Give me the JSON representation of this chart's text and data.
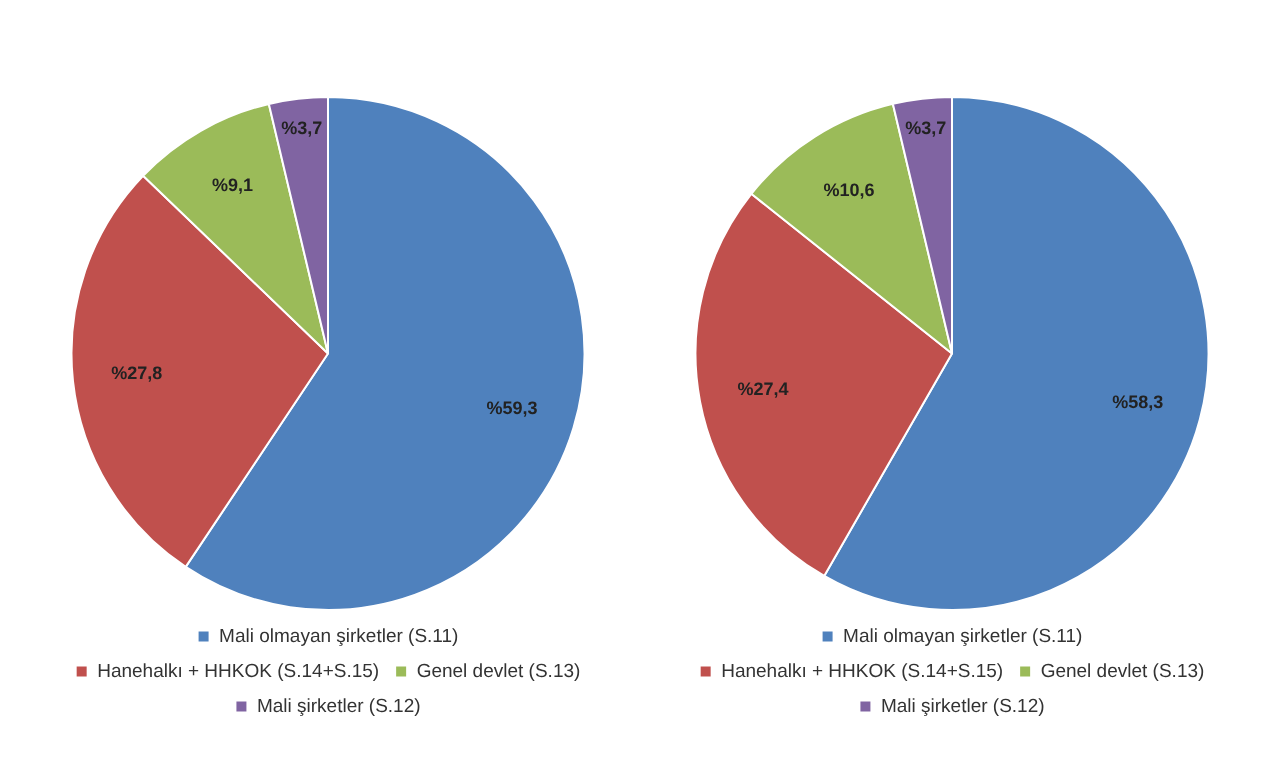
{
  "chart_data": [
    {
      "type": "pie",
      "categories": [
        "Mali olmayan şirketler (S.11)",
        "Hanehalkı + HHKOK (S.14+S.15)",
        "Genel devlet (S.13)",
        "Mali şirketler (S.12)"
      ],
      "values": [
        59.3,
        27.8,
        9.1,
        3.7
      ],
      "colors": [
        "#4f81bd",
        "#c0504d",
        "#9bbb59",
        "#8064a2"
      ],
      "value_labels": [
        "%59,3",
        "%27,8",
        "%9,1",
        "%3,7"
      ],
      "legend": "bottom"
    },
    {
      "type": "pie",
      "categories": [
        "Mali olmayan şirketler (S.11)",
        "Hanehalkı + HHKOK (S.14+S.15)",
        "Genel devlet (S.13)",
        "Mali şirketler (S.12)"
      ],
      "values": [
        58.3,
        27.4,
        10.6,
        3.7
      ],
      "colors": [
        "#4f81bd",
        "#c0504d",
        "#9bbb59",
        "#8064a2"
      ],
      "value_labels": [
        "%58,3",
        "%27,4",
        "%10,6",
        "%3,7"
      ],
      "legend": "bottom"
    }
  ]
}
